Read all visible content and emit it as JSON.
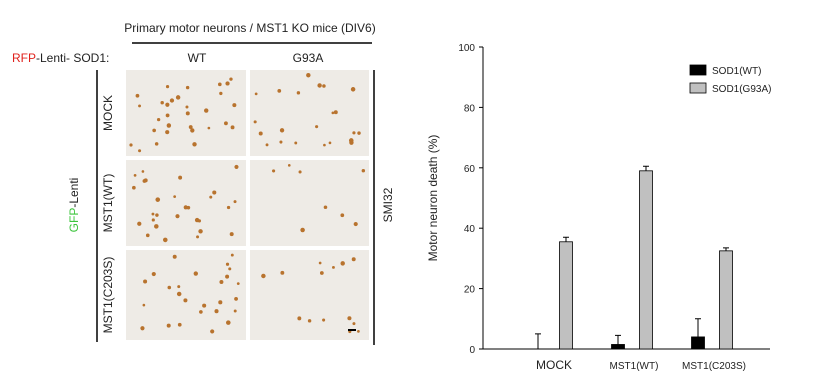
{
  "panel": {
    "header": "Primary  motor neurons / MST1 KO mice (DIV6)",
    "vector_label": {
      "prefix": "RFP",
      "suffix": "-Lenti- SOD1:"
    },
    "columns": [
      "WT",
      "G93A"
    ],
    "rows": [
      "MOCK",
      "MST1(WT)",
      "MST1(C203S)"
    ],
    "side_label": {
      "prefix": "GFP",
      "suffix": "-Lenti"
    },
    "stain": "SMI32"
  },
  "chart_data": {
    "type": "bar",
    "ylabel": "Motor neuron death (%)",
    "categories": [
      "MOCK",
      "MST1(WT)",
      "MST1(C203S)"
    ],
    "series": [
      {
        "name": "SOD1(WT)",
        "color": "#000000",
        "values": [
          0,
          1.5,
          4
        ],
        "errors": [
          5,
          3,
          6
        ]
      },
      {
        "name": "SOD1(G93A)",
        "color": "#c0c0c0",
        "values": [
          35.5,
          59,
          32.5
        ],
        "errors": [
          1.5,
          1.5,
          1
        ]
      }
    ],
    "ylim": [
      0,
      100
    ],
    "yticks": [
      0,
      20,
      40,
      60,
      80,
      100
    ],
    "legend": "upper right"
  }
}
